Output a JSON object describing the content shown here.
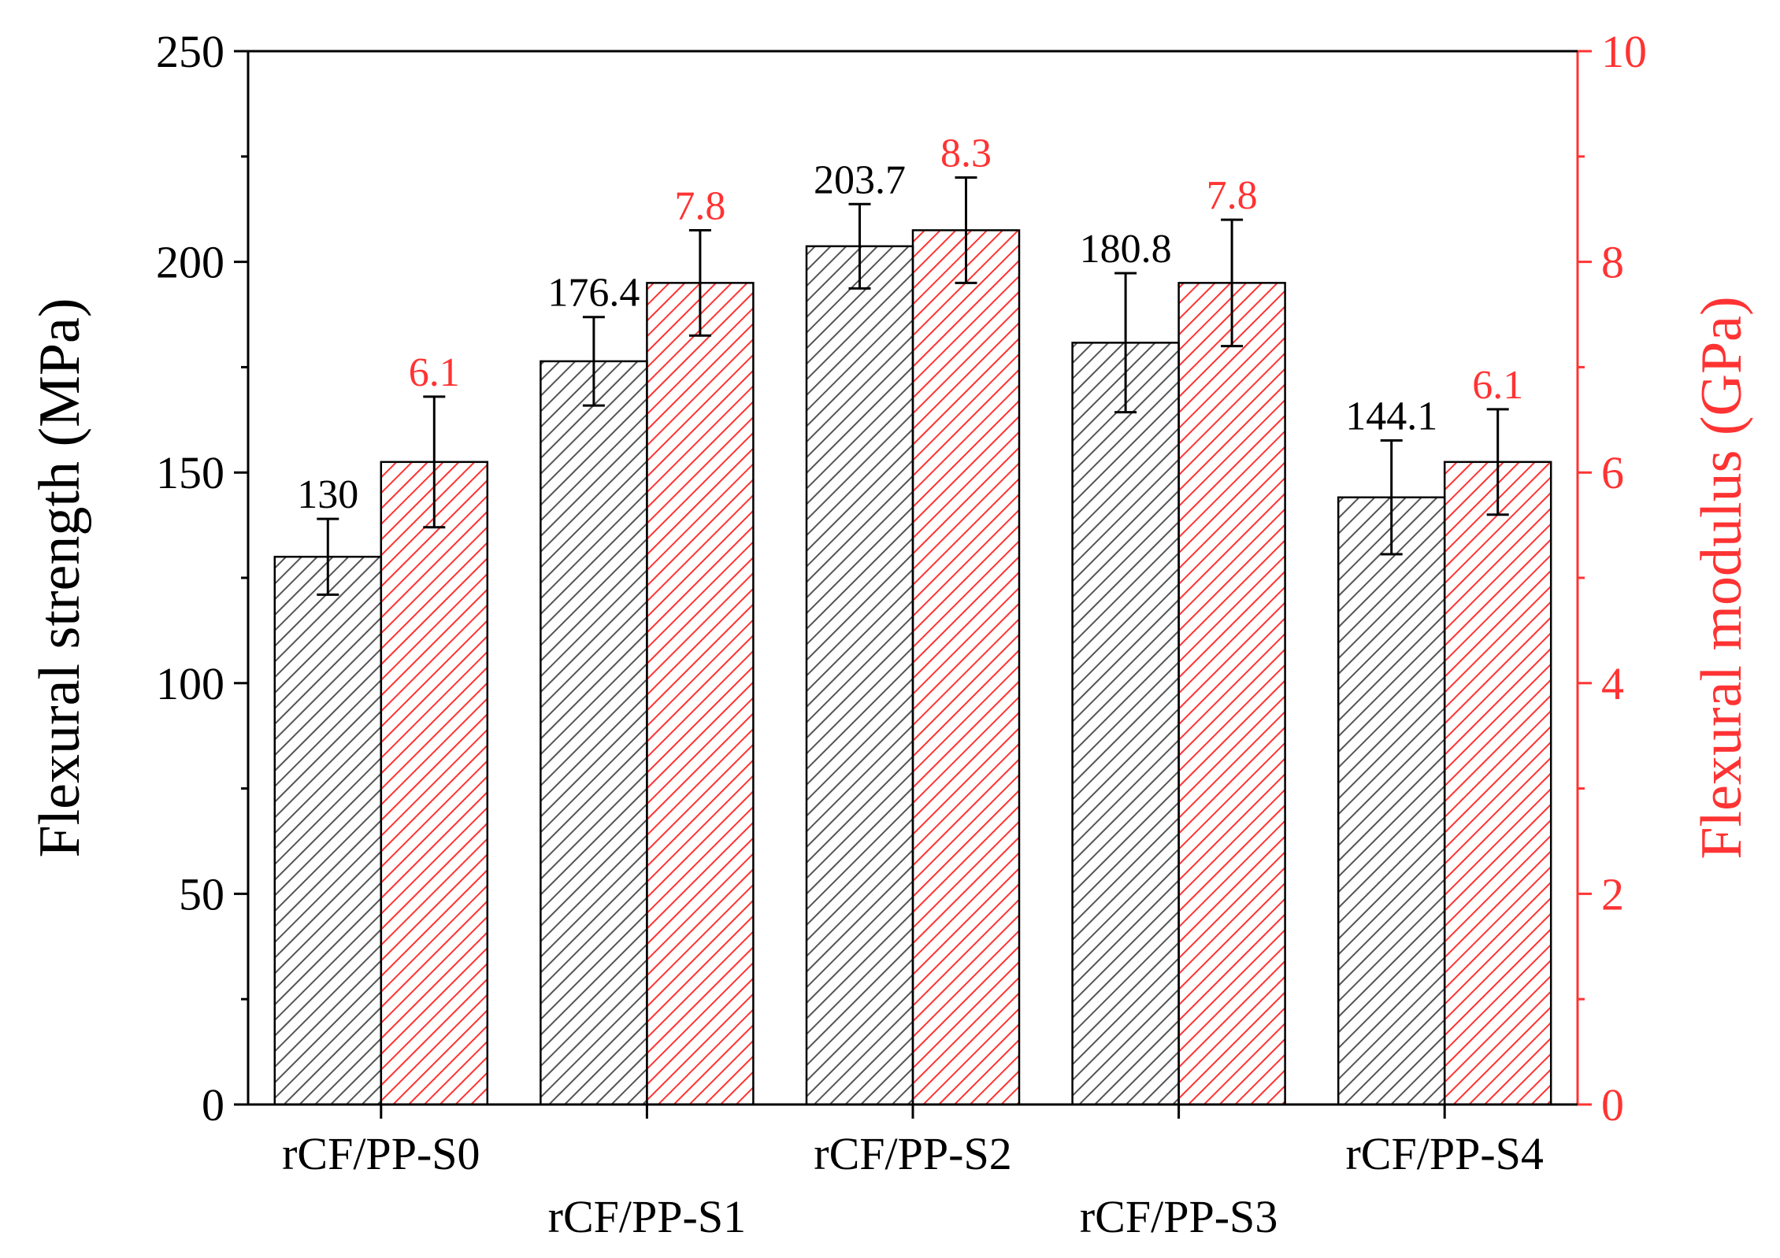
{
  "chart_data": {
    "type": "bar",
    "categories": [
      "rCF/PP-S0",
      "rCF/PP-S1",
      "rCF/PP-S2",
      "rCF/PP-S3",
      "rCF/PP-S4"
    ],
    "series": [
      {
        "name": "Flexural strength",
        "axis": "left",
        "color": "#555555",
        "values": [
          130,
          176.4,
          203.7,
          180.8,
          144.1
        ],
        "labels": [
          "130",
          "176.4",
          "203.7",
          "180.8",
          "144.1"
        ],
        "errors": [
          9,
          10.5,
          10,
          16.5,
          13.5
        ]
      },
      {
        "name": "Flexural modulus",
        "axis": "right",
        "color": "#ff3333",
        "values": [
          6.1,
          7.8,
          8.3,
          7.8,
          6.1
        ],
        "labels": [
          "6.1",
          "7.8",
          "8.3",
          "7.8",
          "6.1"
        ],
        "errors": [
          0.62,
          0.5,
          0.5,
          0.6,
          0.5
        ]
      }
    ],
    "ylabel": "Flexural strength (MPa)",
    "ylabel_right": "Flexural modulus (GPa)",
    "ylim": [
      0,
      250
    ],
    "ylim_right": [
      0,
      10
    ],
    "yticks": [
      0,
      50,
      100,
      150,
      200,
      250
    ],
    "yticks_right": [
      0,
      2,
      4,
      6,
      8,
      10
    ],
    "grid": false,
    "legend": "none"
  }
}
